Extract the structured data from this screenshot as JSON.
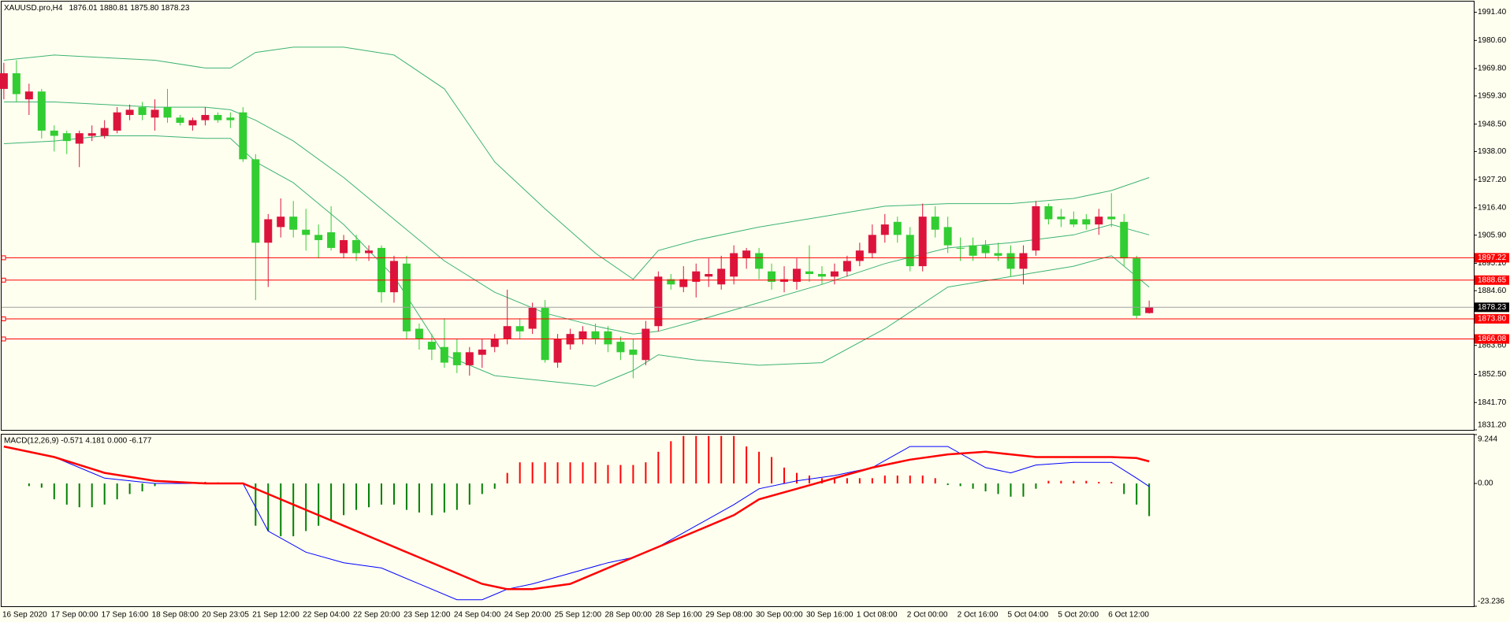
{
  "chart_data": [
    {
      "type": "candlestick",
      "title": "XAUUSD.pro,H4",
      "subtitle": "1876.01 1880.81 1875.80 1878.23",
      "categories": [
        "16 Sep 2020",
        null,
        null,
        null,
        "17 Sep 00:00",
        null,
        null,
        null,
        "17 Sep 16:00",
        null,
        null,
        null,
        "18 Sep 08:00",
        null,
        null,
        null,
        "20 Sep 23:05",
        null,
        null,
        null,
        "21 Sep 12:00",
        null,
        null,
        null,
        "22 Sep 04:00",
        null,
        null,
        null,
        "22 Sep 20:00",
        null,
        null,
        null,
        "23 Sep 12:00",
        null,
        null,
        null,
        "24 Sep 04:00",
        null,
        null,
        null,
        "24 Sep 20:00",
        null,
        null,
        null,
        "25 Sep 12:00",
        null,
        null,
        null,
        "28 Sep 00:00",
        null,
        null,
        null,
        "28 Sep 16:00",
        null,
        null,
        null,
        "29 Sep 08:00",
        null,
        null,
        null,
        "30 Sep 00:00",
        null,
        null,
        null,
        "30 Sep 16:00",
        null,
        null,
        null,
        "1 Oct 08:00",
        null,
        null,
        null,
        "2 Oct 00:00",
        null,
        null,
        null,
        "2 Oct 16:00",
        null,
        null,
        null,
        "5 Oct 04:00",
        null,
        null,
        null,
        "5 Oct 20:00",
        null,
        null,
        null,
        "6 Oct 12:00",
        null,
        null,
        null
      ],
      "open": [
        1962,
        1968,
        1958,
        1961,
        1946,
        1945,
        1941,
        1944,
        1944,
        1946,
        1952,
        1955,
        1951,
        1955,
        1951,
        1948,
        1950,
        1952,
        1951,
        1953,
        1935,
        1903,
        1909,
        1913,
        1908,
        1906,
        1907,
        1899,
        1904,
        1899,
        1901,
        1884,
        1895,
        1870,
        1865,
        1863,
        1861,
        1856,
        1860,
        1863,
        1866,
        1871,
        1870,
        1878,
        1857,
        1864,
        1866,
        1869,
        1869,
        1865,
        1862,
        1858,
        1871,
        1889,
        1886,
        1888,
        1890,
        1887,
        1890,
        1897,
        1899,
        1892,
        1888,
        1888,
        1892,
        1891,
        1890,
        1892,
        1896,
        1899,
        1906,
        1911,
        1906,
        1894,
        1913,
        1909,
        1901,
        1902,
        1902,
        1899,
        1899,
        1893,
        1900,
        1917,
        1913,
        1912,
        1912,
        1910,
        1913,
        1911,
        1897,
        1876.01
      ],
      "high": [
        1972,
        1973,
        1964,
        1962,
        1948,
        1946,
        1946,
        1948,
        1950,
        1955,
        1956,
        1957,
        1958,
        1962,
        1952,
        1951,
        1955,
        1953,
        1953,
        1955,
        1937,
        1914,
        1920,
        1919,
        1916,
        1910,
        1917,
        1906,
        1906,
        1902,
        1902,
        1898,
        1898,
        1872,
        1868,
        1874,
        1866,
        1863,
        1866,
        1868,
        1885,
        1874,
        1880,
        1881,
        1868,
        1870,
        1871,
        1872,
        1871,
        1867,
        1866,
        1873,
        1892,
        1891,
        1894,
        1895,
        1897,
        1898,
        1902,
        1901,
        1901,
        1895,
        1894,
        1897,
        1902,
        1894,
        1895,
        1898,
        1903,
        1910,
        1914,
        1913,
        1909,
        1918,
        1917,
        1913,
        1905,
        1905,
        1904,
        1903,
        1902,
        1902,
        1919,
        1918,
        1916,
        1915,
        1914,
        1916,
        1922,
        1914,
        1898,
        1880.81
      ],
      "low": [
        1958,
        1957,
        1952,
        1943,
        1938,
        1937,
        1932,
        1942,
        1943,
        1945,
        1950,
        1950,
        1946,
        1949,
        1948,
        1946,
        1948,
        1949,
        1947,
        1934,
        1881,
        1886,
        1905,
        1905,
        1900,
        1897,
        1900,
        1897,
        1896,
        1896,
        1880,
        1880,
        1866,
        1862,
        1858,
        1855,
        1853,
        1852,
        1855,
        1861,
        1864,
        1866,
        1868,
        1857,
        1855,
        1862,
        1864,
        1864,
        1861,
        1858,
        1851,
        1856,
        1869,
        1885,
        1884,
        1882,
        1886,
        1885,
        1887,
        1893,
        1889,
        1885,
        1884,
        1885,
        1888,
        1887,
        1887,
        1890,
        1894,
        1897,
        1903,
        1903,
        1892,
        1892,
        1905,
        1899,
        1896,
        1896,
        1897,
        1896,
        1890,
        1887,
        1898,
        1910,
        1909,
        1909,
        1908,
        1906,
        1909,
        1894,
        1874,
        1875.8
      ],
      "close": [
        1968,
        1960,
        1961,
        1946,
        1944,
        1942,
        1945,
        1945,
        1947,
        1953,
        1954,
        1952,
        1954,
        1951,
        1949,
        1950,
        1952,
        1950,
        1950,
        1935,
        1903,
        1912,
        1913,
        1908,
        1906,
        1904,
        1901,
        1904,
        1899,
        1900,
        1884,
        1896,
        1869,
        1866,
        1862,
        1857,
        1856,
        1861,
        1862,
        1866,
        1871,
        1869,
        1878,
        1858,
        1866,
        1868,
        1869,
        1866,
        1864,
        1861,
        1860,
        1870,
        1890,
        1887,
        1889,
        1892,
        1891,
        1893,
        1899,
        1900,
        1893,
        1888,
        1889,
        1893,
        1891,
        1890,
        1892,
        1896,
        1900,
        1906,
        1910,
        1906,
        1894,
        1913,
        1908,
        1902,
        1901,
        1898,
        1899,
        1898,
        1893,
        1899,
        1917,
        1912,
        1912,
        1910,
        1910,
        1913,
        1912,
        1897,
        1875,
        1878.23
      ],
      "up_color": "#dc143c",
      "down_color": "#32cd32",
      "bands": {
        "color": "#3cb371",
        "x": [
          0,
          4,
          8,
          12,
          16,
          18,
          20,
          23,
          27,
          31,
          35,
          39,
          43,
          47,
          50,
          52,
          55,
          60,
          65,
          70,
          75,
          80,
          85,
          88,
          91
        ],
        "upper": [
          1973,
          1975,
          1974,
          1973,
          1970,
          1970,
          1976,
          1978,
          1978,
          1975,
          1962,
          1934,
          1916,
          1899,
          1889,
          1900,
          1904,
          1909,
          1913,
          1917,
          1918,
          1918,
          1920,
          1923,
          1928
        ],
        "middle": [
          1957,
          1957,
          1956,
          1955,
          1955,
          1954,
          1950,
          1942,
          1928,
          1912,
          1896,
          1884,
          1876,
          1871,
          1868,
          1869,
          1873,
          1880,
          1887,
          1895,
          1901,
          1903,
          1906,
          1910,
          1906
        ],
        "lower": [
          1941,
          1942,
          1944,
          1944,
          1943,
          1943,
          1934,
          1926,
          1910,
          1890,
          1860,
          1852,
          1850,
          1848,
          1854,
          1860,
          1858,
          1856,
          1857,
          1870,
          1886,
          1890,
          1894,
          1898,
          1886
        ]
      },
      "levels": [
        1897.22,
        1888.65,
        {
          "value": 1873.8,
          "label": "1873.80"
        },
        1866.08
      ],
      "level_color": "#ff0000",
      "current_price": 1878.23,
      "ylim": [
        1831.2,
        1995.5
      ],
      "yticks": [
        {
          "value": 1991.4,
          "label": "1991.40"
        },
        {
          "value": 1980.6,
          "label": "1980.60"
        },
        {
          "value": 1969.8,
          "label": "1969.80"
        },
        {
          "value": 1959.3,
          "label": "1959.30"
        },
        {
          "value": 1948.5,
          "label": "1948.50"
        },
        {
          "value": 1938,
          "label": "1938.00"
        },
        {
          "value": 1927.2,
          "label": "1927.20"
        },
        {
          "value": 1916.4,
          "label": "1916.40"
        },
        {
          "value": 1905.9,
          "label": "1905.90"
        },
        {
          "value": 1895.1,
          "label": "1895.10"
        },
        {
          "value": 1884.6,
          "label": "1884.60"
        },
        {
          "value": 1863.6,
          "label": "1863.60"
        },
        {
          "value": 1852.5,
          "label": "1852.50"
        },
        {
          "value": 1841.7,
          "label": "1841.70"
        },
        {
          "value": 1831.2,
          "label": "1831.20"
        }
      ],
      "grid": false
    },
    {
      "type": "macd",
      "title": "MACD(12,26,9) -0.571 4.181 0.000 -6.177",
      "histogram": {
        "up_color": "#ff0000",
        "down_color": "#008000",
        "values": [
          0,
          0,
          -0.5,
          -0.8,
          -3,
          -4,
          -4.5,
          -4.5,
          -4,
          -3,
          -2,
          -1.5,
          -0.5,
          0,
          0.3,
          0.3,
          0.3,
          0.2,
          0,
          0,
          -8,
          -9,
          -10,
          -10,
          -9,
          -8,
          -7,
          -6,
          -5,
          -4.5,
          -4,
          -4,
          -5,
          -5.5,
          -6,
          -5.5,
          -5,
          -4,
          -2,
          -1,
          2,
          4,
          4,
          4,
          4,
          4,
          4,
          4,
          3.5,
          3.5,
          3.5,
          4,
          6,
          8,
          9,
          9,
          9,
          9,
          9,
          7,
          6,
          5,
          3,
          2,
          1.5,
          1,
          1,
          1,
          1,
          1,
          1.5,
          1.5,
          1.5,
          1.5,
          1,
          -0.3,
          -0.5,
          -1,
          -1.5,
          -2,
          -2.5,
          -2.5,
          -1,
          0.5,
          0.5,
          0.5,
          0.5,
          0.3,
          0.3,
          -2,
          -4,
          -6.177
        ]
      },
      "series": [
        {
          "name": "MACD",
          "color": "#0000ff",
          "x": [
            0,
            4,
            8,
            12,
            16,
            19,
            21,
            24,
            27,
            30,
            33,
            36,
            38,
            40,
            42,
            45,
            48,
            50,
            52,
            55,
            58,
            60,
            63,
            66,
            69,
            72,
            75,
            78,
            80,
            82,
            85,
            88,
            90,
            91
          ],
          "values": [
            7,
            5,
            1,
            0,
            0,
            0,
            -9,
            -13,
            -15,
            -16,
            -19,
            -22,
            -22,
            -20,
            -19,
            -17,
            -15,
            -14,
            -12,
            -8,
            -4,
            -1,
            0.5,
            1.5,
            3,
            7,
            7,
            3,
            2,
            3.5,
            4,
            4,
            1,
            -0.571
          ]
        },
        {
          "name": "Signal",
          "color": "#ff0000",
          "x": [
            0,
            4,
            8,
            12,
            16,
            19,
            21,
            24,
            27,
            30,
            33,
            36,
            38,
            40,
            42,
            45,
            48,
            50,
            52,
            55,
            58,
            60,
            63,
            66,
            69,
            72,
            75,
            78,
            80,
            82,
            85,
            88,
            90,
            91
          ],
          "values": [
            7,
            5,
            2,
            0.5,
            0,
            0,
            -2,
            -5,
            -8,
            -11,
            -14,
            -17,
            -19,
            -20,
            -20,
            -19,
            -16,
            -14,
            -12,
            -9,
            -6,
            -3,
            -1,
            1,
            3,
            4.5,
            5.5,
            6,
            5.5,
            5,
            5,
            5,
            4.8,
            4.181
          ]
        }
      ],
      "ylim": [
        -23.236,
        9.244
      ],
      "yticks": [
        9.244,
        {
          "value": 0,
          "label": "0.00"
        },
        -23.236
      ]
    }
  ]
}
